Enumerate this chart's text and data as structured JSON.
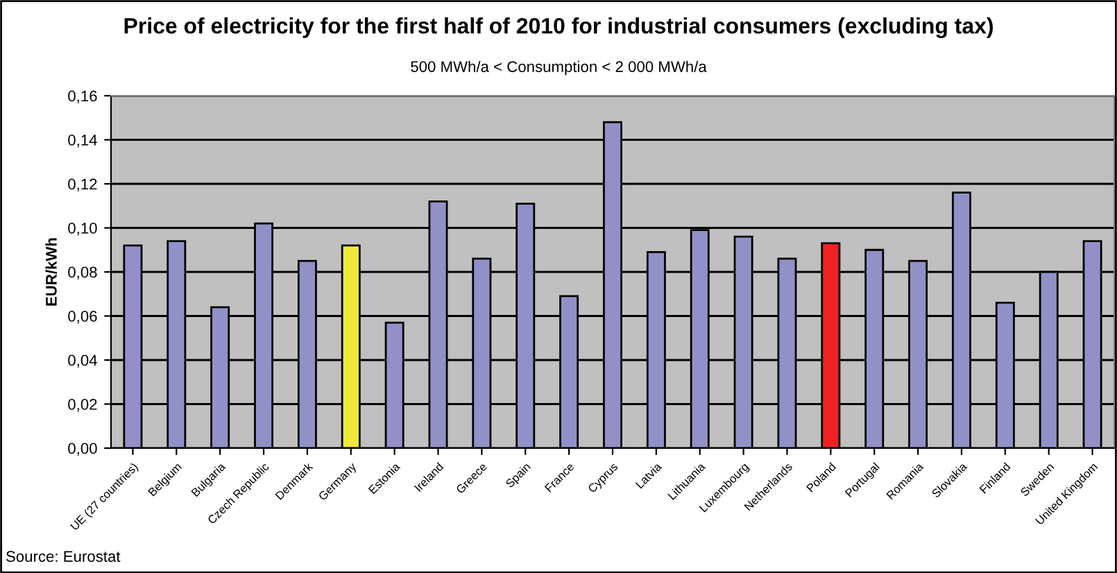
{
  "chart_data": {
    "type": "bar",
    "title": "Price of electricity for the first half of 2010 for industrial consumers (excluding tax)",
    "subtitle": "500 MWh/a < Consumption < 2 000 MWh/a",
    "ylabel": "EUR/kWh",
    "categories": [
      "UE (27 countries)",
      "Belgium",
      "Bulgaria",
      "Czech Republic",
      "Denmark",
      "Germany",
      "Estonia",
      "Ireland",
      "Greece",
      "Spain",
      "France",
      "Cyprus",
      "Latvia",
      "Lithuania",
      "Luxembourg",
      "Netherlands",
      "Poland",
      "Portugal",
      "Romania",
      "Slovakia",
      "Finland",
      "Sweden",
      "United Kingdom"
    ],
    "values": [
      0.092,
      0.094,
      0.064,
      0.102,
      0.085,
      0.092,
      0.057,
      0.112,
      0.086,
      0.111,
      0.069,
      0.148,
      0.089,
      0.099,
      0.096,
      0.086,
      0.093,
      0.09,
      0.085,
      0.116,
      0.066,
      0.08,
      0.094
    ],
    "colors": [
      "#9191c8",
      "#9191c8",
      "#9191c8",
      "#9191c8",
      "#9191c8",
      "#f0e93c",
      "#9191c8",
      "#9191c8",
      "#9191c8",
      "#9191c8",
      "#9191c8",
      "#9191c8",
      "#9191c8",
      "#9191c8",
      "#9191c8",
      "#9191c8",
      "#ee2222",
      "#9191c8",
      "#9191c8",
      "#9191c8",
      "#9191c8",
      "#9191c8",
      "#9191c8"
    ],
    "ylim": [
      0,
      0.16
    ],
    "yticks": [
      {
        "value": 0,
        "label": "0,00"
      },
      {
        "value": 0.02,
        "label": "0,02"
      },
      {
        "value": 0.04,
        "label": "0,04"
      },
      {
        "value": 0.06,
        "label": "0,06"
      },
      {
        "value": 0.08,
        "label": "0,08"
      },
      {
        "value": 0.1,
        "label": "0,10"
      },
      {
        "value": 0.12,
        "label": "0,12"
      },
      {
        "value": 0.14,
        "label": "0,14"
      },
      {
        "value": 0.16,
        "label": "0,16"
      }
    ],
    "grid": "y",
    "legend": false,
    "annotations": [
      "Source: Eurostat"
    ]
  }
}
